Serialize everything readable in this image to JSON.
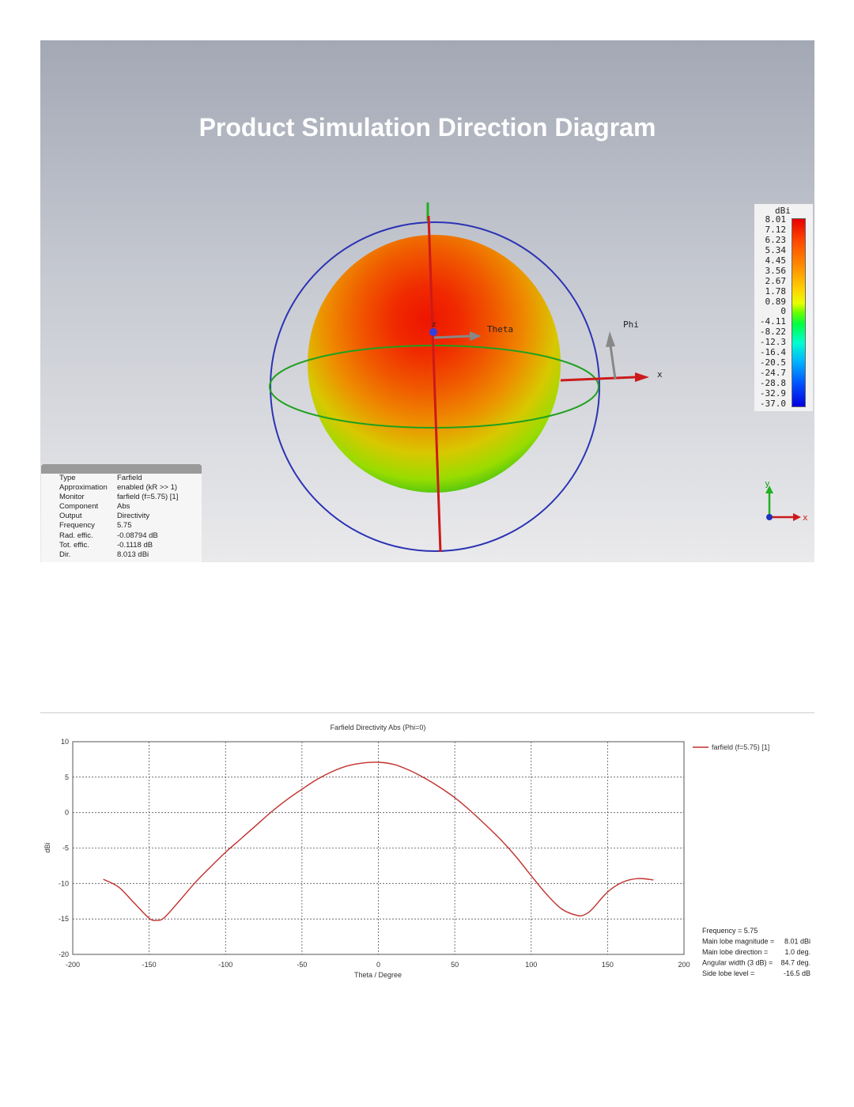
{
  "panel3d": {
    "title": "Product Simulation Direction Diagram",
    "axis_labels": {
      "theta": "Theta",
      "phi": "Phi",
      "x": "x",
      "z": "z"
    },
    "colorbar": {
      "unit": "dBi",
      "labels": [
        "8.01",
        "7.12",
        "6.23",
        "5.34",
        "4.45",
        "3.56",
        "2.67",
        "1.78",
        "0.89",
        "0",
        "-4.11",
        "-8.22",
        "-12.3",
        "-16.4",
        "-20.5",
        "-24.7",
        "-28.8",
        "-32.9",
        "-37.0"
      ]
    },
    "info": [
      {
        "key": "Type",
        "value": "Farfield"
      },
      {
        "key": "Approximation",
        "value": "enabled (kR >> 1)"
      },
      {
        "key": "Monitor",
        "value": "farfield (f=5.75) [1]"
      },
      {
        "key": "Component",
        "value": "Abs"
      },
      {
        "key": "Output",
        "value": "Directivity"
      },
      {
        "key": "Frequency",
        "value": "5.75"
      },
      {
        "key": "Rad. effic.",
        "value": "-0.08794 dB"
      },
      {
        "key": "Tot. effic.",
        "value": "-0.1118 dB"
      },
      {
        "key": "Dir.",
        "value": "8.013 dBi"
      }
    ],
    "axes_icon": {
      "y": "y",
      "x": "x"
    }
  },
  "chart_data": {
    "type": "line",
    "title": "Farfield Directivity Abs (Phi=0)",
    "xlabel": "Theta / Degree",
    "ylabel": "dBi",
    "xlim": [
      -200,
      200
    ],
    "ylim": [
      -20,
      10
    ],
    "xticks": [
      "-200",
      "-150",
      "-100",
      "-50",
      "0",
      "50",
      "100",
      "150",
      "200"
    ],
    "yticks": [
      "10",
      "5",
      "0",
      "-5",
      "-10",
      "-15",
      "-20"
    ],
    "grid": true,
    "legend_position": "right",
    "color": "#c0302c",
    "series": [
      {
        "name": "farfield (f=5.75) [1]",
        "x": [
          -180,
          -170,
          -160,
          -150,
          -145,
          -140,
          -130,
          -120,
          -110,
          -100,
          -90,
          -80,
          -70,
          -60,
          -50,
          -40,
          -30,
          -20,
          -10,
          0,
          10,
          20,
          30,
          40,
          50,
          60,
          70,
          80,
          90,
          100,
          110,
          120,
          130,
          135,
          140,
          150,
          160,
          170,
          180
        ],
        "y": [
          -9.4,
          -10.5,
          -12.7,
          -14.9,
          -15.2,
          -14.8,
          -12.4,
          -9.9,
          -7.7,
          -5.6,
          -3.7,
          -1.8,
          0.1,
          1.8,
          3.3,
          4.7,
          5.8,
          6.6,
          7.0,
          7.1,
          6.8,
          6.0,
          4.9,
          3.6,
          2.1,
          0.3,
          -1.7,
          -3.8,
          -6.2,
          -8.9,
          -11.5,
          -13.6,
          -14.5,
          -14.4,
          -13.6,
          -11.2,
          -9.8,
          -9.3,
          -9.5
        ]
      }
    ],
    "stats": [
      {
        "label": "Frequency = 5.75",
        "value": ""
      },
      {
        "label": "Main lobe magnitude =",
        "value": "8.01 dBi"
      },
      {
        "label": "Main lobe direction =",
        "value": "1.0 deg."
      },
      {
        "label": "Angular width (3 dB) =",
        "value": "84.7 deg."
      },
      {
        "label": "Side lobe level =",
        "value": "-16.5 dB"
      }
    ]
  }
}
